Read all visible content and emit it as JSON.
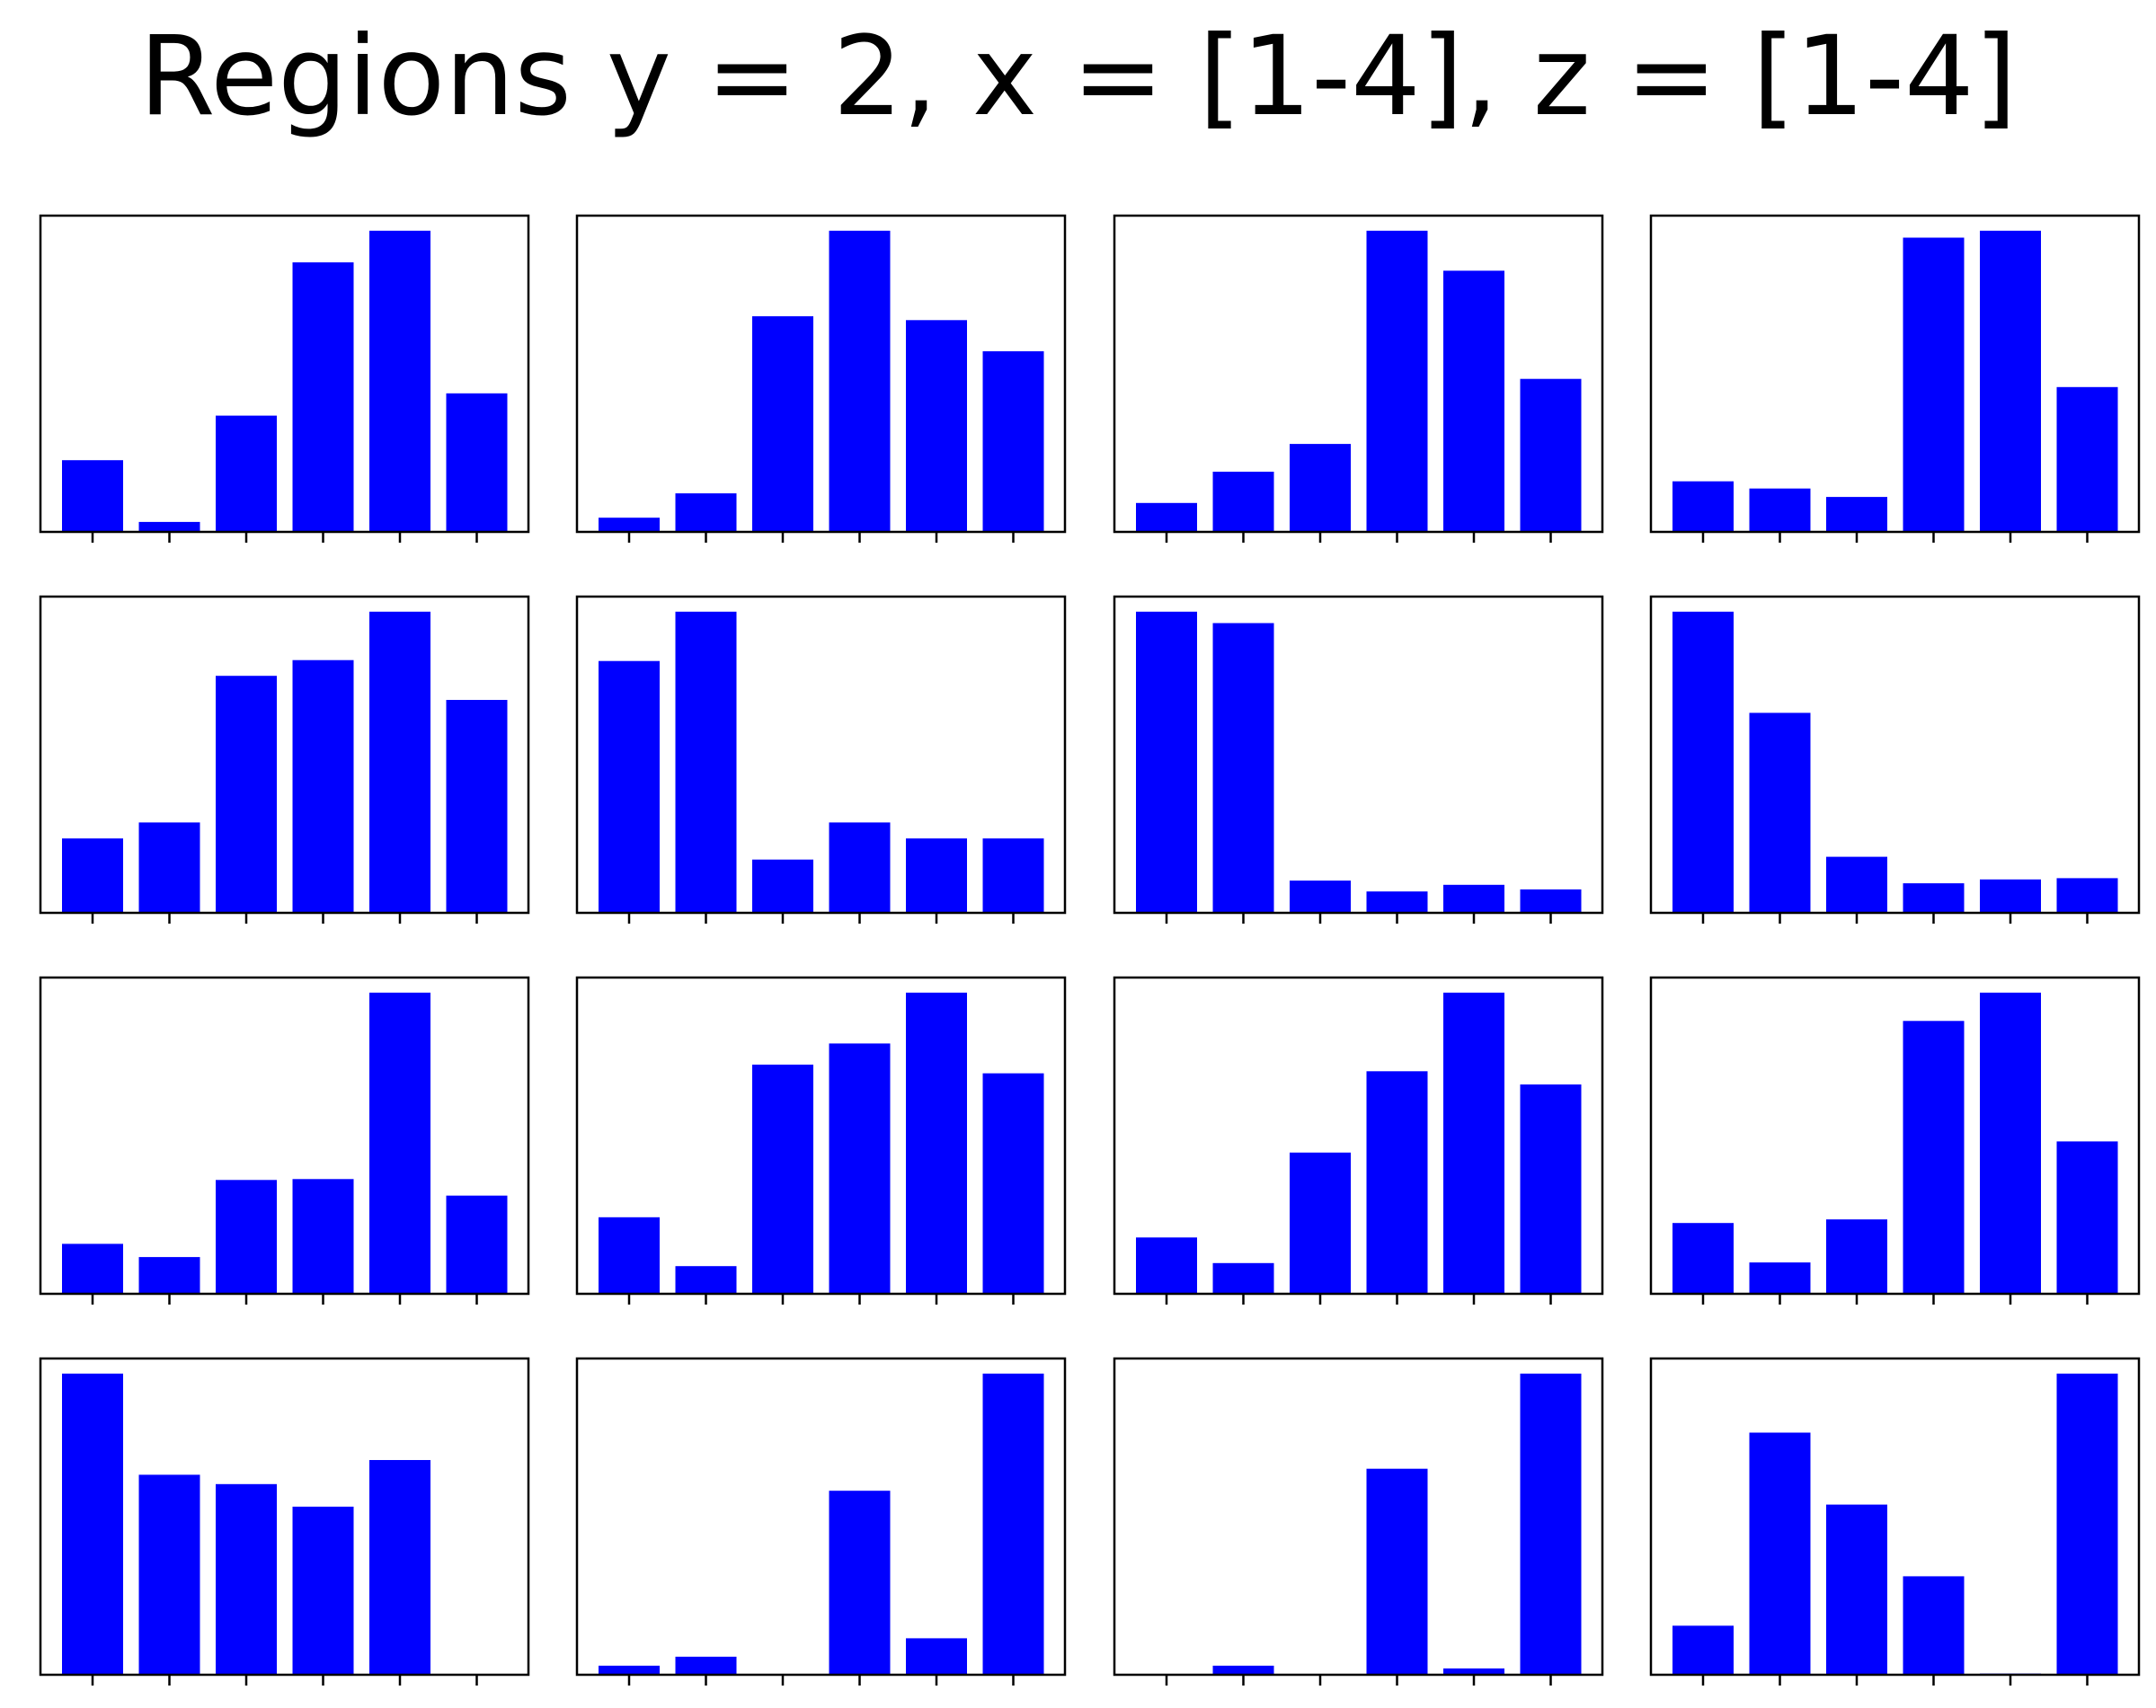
{
  "figure": {
    "title": "Regions y = 2, x = [1-4], z = [1-4]"
  },
  "colors": {
    "bar": "#0000ff",
    "frame": "#000000",
    "background": "#ffffff"
  },
  "chart_data": [
    {
      "type": "bar",
      "grid_row": 1,
      "grid_col": 1,
      "categories": [
        "1",
        "2",
        "3",
        "4",
        "5",
        "6"
      ],
      "values": [
        0.238,
        0.033,
        0.386,
        0.895,
        1.0,
        0.46
      ],
      "ylim": [
        0,
        1.05
      ],
      "xticks_labeled": false,
      "yticks": false,
      "grid": false
    },
    {
      "type": "bar",
      "grid_row": 1,
      "grid_col": 2,
      "categories": [
        "1",
        "2",
        "3",
        "4",
        "5",
        "6"
      ],
      "values": [
        0.047,
        0.128,
        0.716,
        1.0,
        0.703,
        0.6
      ],
      "ylim": [
        0,
        1.05
      ],
      "xticks_labeled": false,
      "yticks": false,
      "grid": false
    },
    {
      "type": "bar",
      "grid_row": 1,
      "grid_col": 3,
      "categories": [
        "1",
        "2",
        "3",
        "4",
        "5",
        "6"
      ],
      "values": [
        0.096,
        0.2,
        0.292,
        1.0,
        0.867,
        0.508
      ],
      "ylim": [
        0,
        1.05
      ],
      "xticks_labeled": false,
      "yticks": false,
      "grid": false
    },
    {
      "type": "bar",
      "grid_row": 1,
      "grid_col": 4,
      "categories": [
        "1",
        "2",
        "3",
        "4",
        "5",
        "6"
      ],
      "values": [
        0.168,
        0.144,
        0.116,
        0.977,
        1.0,
        0.481
      ],
      "ylim": [
        0,
        1.05
      ],
      "xticks_labeled": false,
      "yticks": false,
      "grid": false
    },
    {
      "type": "bar",
      "grid_row": 2,
      "grid_col": 1,
      "categories": [
        "1",
        "2",
        "3",
        "4",
        "5",
        "6"
      ],
      "values": [
        0.247,
        0.3,
        0.787,
        0.839,
        1.0,
        0.707
      ],
      "ylim": [
        0,
        1.05
      ],
      "xticks_labeled": false,
      "yticks": false,
      "grid": false
    },
    {
      "type": "bar",
      "grid_row": 2,
      "grid_col": 2,
      "categories": [
        "1",
        "2",
        "3",
        "4",
        "5",
        "6"
      ],
      "values": [
        0.836,
        1.0,
        0.177,
        0.3,
        0.247,
        0.247
      ],
      "ylim": [
        0,
        1.05
      ],
      "xticks_labeled": false,
      "yticks": false,
      "grid": false
    },
    {
      "type": "bar",
      "grid_row": 2,
      "grid_col": 3,
      "categories": [
        "1",
        "2",
        "3",
        "4",
        "5",
        "6"
      ],
      "values": [
        1.0,
        0.962,
        0.107,
        0.071,
        0.093,
        0.078
      ],
      "ylim": [
        0,
        1.05
      ],
      "xticks_labeled": false,
      "yticks": false,
      "grid": false
    },
    {
      "type": "bar",
      "grid_row": 2,
      "grid_col": 4,
      "categories": [
        "1",
        "2",
        "3",
        "4",
        "5",
        "6"
      ],
      "values": [
        1.0,
        0.664,
        0.186,
        0.098,
        0.111,
        0.115
      ],
      "ylim": [
        0,
        1.05
      ],
      "xticks_labeled": false,
      "yticks": false,
      "grid": false
    },
    {
      "type": "bar",
      "grid_row": 3,
      "grid_col": 1,
      "categories": [
        "1",
        "2",
        "3",
        "4",
        "5",
        "6"
      ],
      "values": [
        0.166,
        0.122,
        0.378,
        0.381,
        1.0,
        0.326
      ],
      "ylim": [
        0,
        1.05
      ],
      "xticks_labeled": false,
      "yticks": false,
      "grid": false
    },
    {
      "type": "bar",
      "grid_row": 3,
      "grid_col": 2,
      "categories": [
        "1",
        "2",
        "3",
        "4",
        "5",
        "6"
      ],
      "values": [
        0.254,
        0.092,
        0.761,
        0.831,
        1.0,
        0.732
      ],
      "ylim": [
        0,
        1.05
      ],
      "xticks_labeled": false,
      "yticks": false,
      "grid": false
    },
    {
      "type": "bar",
      "grid_row": 3,
      "grid_col": 3,
      "categories": [
        "1",
        "2",
        "3",
        "4",
        "5",
        "6"
      ],
      "values": [
        0.187,
        0.102,
        0.469,
        0.739,
        1.0,
        0.695
      ],
      "ylim": [
        0,
        1.05
      ],
      "xticks_labeled": false,
      "yticks": false,
      "grid": false
    },
    {
      "type": "bar",
      "grid_row": 3,
      "grid_col": 4,
      "categories": [
        "1",
        "2",
        "3",
        "4",
        "5",
        "6"
      ],
      "values": [
        0.235,
        0.104,
        0.247,
        0.906,
        1.0,
        0.506
      ],
      "ylim": [
        0,
        1.05
      ],
      "xticks_labeled": false,
      "yticks": false,
      "grid": false
    },
    {
      "type": "bar",
      "grid_row": 4,
      "grid_col": 1,
      "categories": [
        "1",
        "2",
        "3",
        "4",
        "5",
        "6"
      ],
      "values": [
        1.0,
        0.664,
        0.633,
        0.558,
        0.713,
        0.0
      ],
      "ylim": [
        0,
        1.05
      ],
      "xticks_labeled": false,
      "yticks": false,
      "grid": false
    },
    {
      "type": "bar",
      "grid_row": 4,
      "grid_col": 2,
      "categories": [
        "1",
        "2",
        "3",
        "4",
        "5",
        "6"
      ],
      "values": [
        0.03,
        0.06,
        0.0,
        0.611,
        0.121,
        1.0
      ],
      "ylim": [
        0,
        1.05
      ],
      "xticks_labeled": false,
      "yticks": false,
      "grid": false
    },
    {
      "type": "bar",
      "grid_row": 4,
      "grid_col": 3,
      "categories": [
        "1",
        "2",
        "3",
        "4",
        "5",
        "6"
      ],
      "values": [
        0.0,
        0.03,
        0.0,
        0.684,
        0.021,
        1.0
      ],
      "ylim": [
        0,
        1.05
      ],
      "xticks_labeled": false,
      "yticks": false,
      "grid": false
    },
    {
      "type": "bar",
      "grid_row": 4,
      "grid_col": 4,
      "categories": [
        "1",
        "2",
        "3",
        "4",
        "5",
        "6"
      ],
      "values": [
        0.163,
        0.804,
        0.565,
        0.327,
        0.004,
        1.0
      ],
      "ylim": [
        0,
        1.05
      ],
      "xticks_labeled": false,
      "yticks": false,
      "grid": false
    }
  ]
}
